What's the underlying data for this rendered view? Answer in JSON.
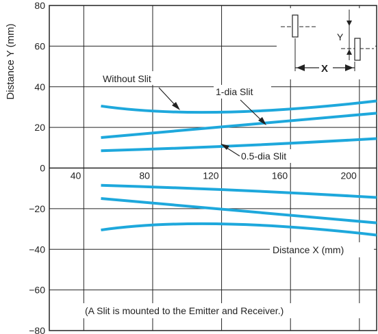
{
  "chart_data": {
    "type": "line",
    "ylabel": "Distance Y (mm)",
    "xlabel": "Distance X (mm)",
    "xlim": [
      20,
      210
    ],
    "ylim": [
      -80,
      80
    ],
    "x_ticks": [
      40,
      80,
      120,
      160,
      200
    ],
    "y_ticks": [
      80,
      60,
      40,
      20,
      0,
      -20,
      -40,
      -60,
      -80
    ],
    "x_tick_labels": [
      "40",
      "80",
      "120",
      "160",
      "200"
    ],
    "y_tick_labels": [
      "80",
      "60",
      "40",
      "20",
      "0",
      "−20",
      "−40",
      "−60",
      "−80"
    ],
    "grid": true,
    "line_color": "#1ea8dc",
    "series": [
      {
        "name": "Without Slit",
        "x": [
          50,
          110,
          210
        ],
        "y": [
          30.5,
          27.5,
          33
        ]
      },
      {
        "name": "Without Slit",
        "x": [
          50,
          110,
          210
        ],
        "y": [
          -30.5,
          -27.5,
          -33
        ]
      },
      {
        "name": "1-dia Slit",
        "x": [
          50,
          130,
          210
        ],
        "y": [
          15,
          21,
          27
        ]
      },
      {
        "name": "1-dia Slit",
        "x": [
          50,
          130,
          210
        ],
        "y": [
          -15,
          -21,
          -27
        ]
      },
      {
        "name": "0.5-dia Slit",
        "x": [
          50,
          130,
          210
        ],
        "y": [
          8.5,
          11,
          14.5
        ]
      },
      {
        "name": "0.5-dia Slit",
        "x": [
          50,
          130,
          210
        ],
        "y": [
          -8.5,
          -11,
          -14.5
        ]
      }
    ],
    "annotations": [
      "Without Slit",
      "1-dia Slit",
      "0.5-dia Slit"
    ],
    "note": "(A Slit is mounted to the Emitter and Receiver.)",
    "inset_labels": [
      "Y",
      "X"
    ]
  }
}
